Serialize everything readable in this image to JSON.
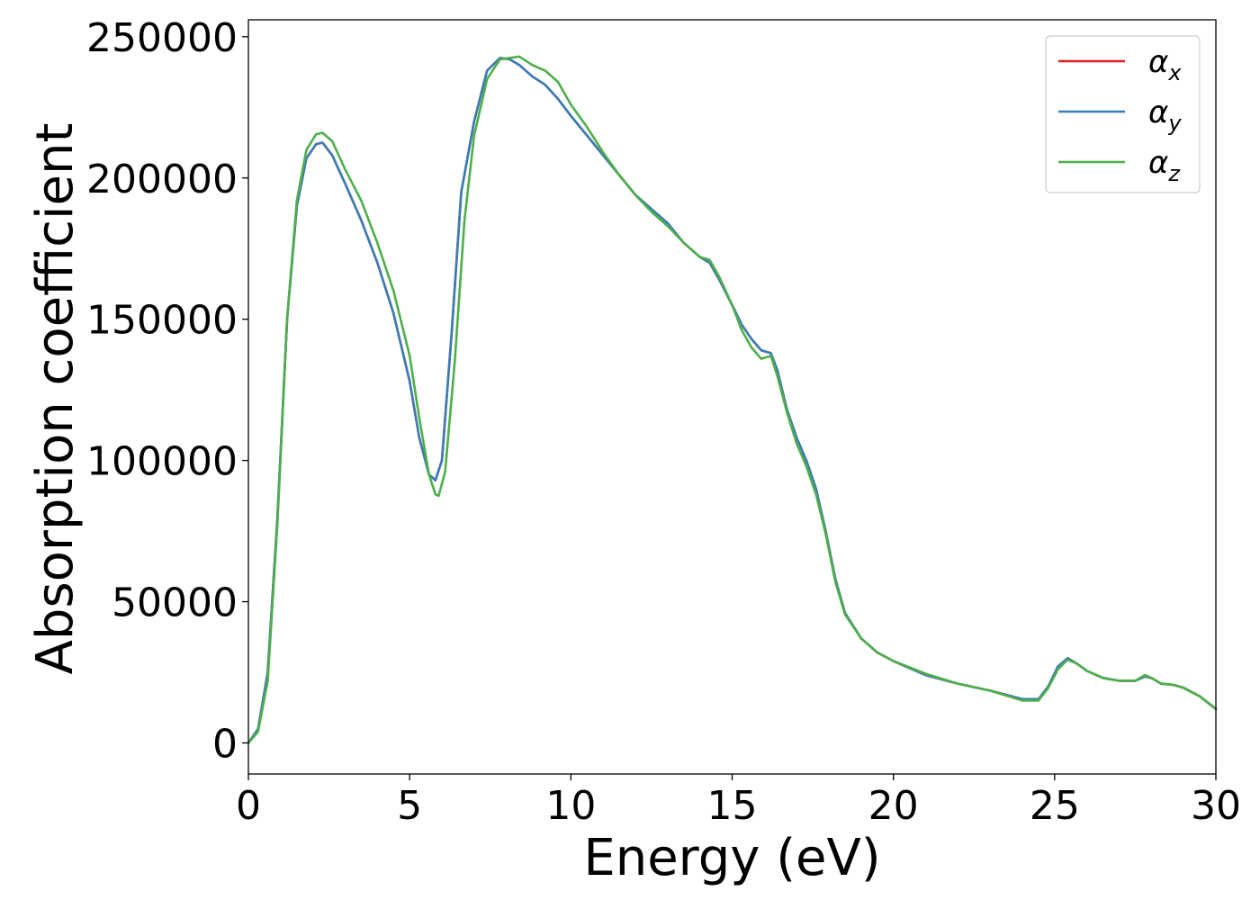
{
  "chart_data": {
    "type": "line",
    "title": "",
    "xlabel": "Energy (eV)",
    "ylabel": "Absorption coefficient",
    "xlim": [
      0,
      30
    ],
    "ylim": [
      -11000,
      256000
    ],
    "xticks": [
      0,
      5,
      10,
      15,
      20,
      25,
      30
    ],
    "yticks": [
      0,
      50000,
      100000,
      150000,
      200000,
      250000
    ],
    "xtick_labels": [
      "0",
      "5",
      "10",
      "15",
      "20",
      "25",
      "30"
    ],
    "ytick_labels": [
      "0",
      "50000",
      "100000",
      "150000",
      "200000",
      "250000"
    ],
    "grid": false,
    "legend_position": "top-right",
    "series": [
      {
        "name": "αx",
        "legend_main": "α",
        "legend_sub": "x",
        "color": "#e41a1c",
        "x": [
          0,
          0.3,
          0.6,
          0.9,
          1.2,
          1.5,
          1.8,
          2.1,
          2.3,
          2.6,
          3.0,
          3.5,
          4.0,
          4.5,
          5.0,
          5.3,
          5.6,
          5.8,
          6.0,
          6.3,
          6.6,
          7.0,
          7.4,
          7.8,
          8.1,
          8.4,
          8.8,
          9.2,
          9.6,
          10.0,
          10.5,
          11.0,
          11.5,
          12.0,
          12.5,
          13.0,
          13.5,
          14.0,
          14.3,
          14.6,
          15.0,
          15.3,
          15.6,
          15.9,
          16.2,
          16.4,
          16.7,
          17.0,
          17.3,
          17.6,
          17.9,
          18.2,
          18.5,
          19.0,
          19.5,
          20.0,
          21.0,
          22.0,
          23.0,
          24.0,
          24.5,
          24.8,
          25.1,
          25.4,
          25.7,
          26.0,
          26.5,
          27.0,
          27.5,
          27.8,
          28.0,
          28.3,
          28.7,
          29.0,
          29.5,
          30.0
        ],
        "y": [
          0,
          5000,
          25000,
          80000,
          150000,
          190000,
          207000,
          212000,
          212500,
          208000,
          198000,
          185000,
          170000,
          152000,
          128000,
          108000,
          95000,
          93000,
          100000,
          145000,
          195000,
          220000,
          238000,
          242500,
          242000,
          240000,
          236000,
          233000,
          228000,
          222000,
          215000,
          208000,
          201000,
          194000,
          189000,
          184000,
          177000,
          172000,
          170000,
          164000,
          155000,
          148000,
          143000,
          139000,
          138000,
          132000,
          118000,
          108000,
          100000,
          90000,
          75000,
          58000,
          46000,
          37000,
          32000,
          29000,
          24000,
          21000,
          18500,
          15500,
          15500,
          20000,
          27000,
          30000,
          28000,
          25500,
          23000,
          22000,
          22000,
          23500,
          23000,
          21000,
          20500,
          19500,
          16500,
          12000
        ]
      },
      {
        "name": "αy",
        "legend_main": "α",
        "legend_sub": "y",
        "color": "#377eb8",
        "x": [
          0,
          0.3,
          0.6,
          0.9,
          1.2,
          1.5,
          1.8,
          2.1,
          2.3,
          2.6,
          3.0,
          3.5,
          4.0,
          4.5,
          5.0,
          5.3,
          5.6,
          5.8,
          6.0,
          6.3,
          6.6,
          7.0,
          7.4,
          7.8,
          8.1,
          8.4,
          8.8,
          9.2,
          9.6,
          10.0,
          10.5,
          11.0,
          11.5,
          12.0,
          12.5,
          13.0,
          13.5,
          14.0,
          14.3,
          14.6,
          15.0,
          15.3,
          15.6,
          15.9,
          16.2,
          16.4,
          16.7,
          17.0,
          17.3,
          17.6,
          17.9,
          18.2,
          18.5,
          19.0,
          19.5,
          20.0,
          21.0,
          22.0,
          23.0,
          24.0,
          24.5,
          24.8,
          25.1,
          25.4,
          25.7,
          26.0,
          26.5,
          27.0,
          27.5,
          27.8,
          28.0,
          28.3,
          28.7,
          29.0,
          29.5,
          30.0
        ],
        "y": [
          0,
          5000,
          25000,
          80000,
          150000,
          190000,
          207000,
          212000,
          212500,
          208000,
          198000,
          185000,
          170000,
          152000,
          128000,
          108000,
          95000,
          93000,
          100000,
          145000,
          195000,
          220000,
          238000,
          242500,
          242000,
          240000,
          236000,
          233000,
          228000,
          222000,
          215000,
          208000,
          201000,
          194000,
          189000,
          184000,
          177000,
          172000,
          170000,
          164000,
          155000,
          148000,
          143000,
          139000,
          138000,
          132000,
          118000,
          108000,
          100000,
          90000,
          75000,
          58000,
          46000,
          37000,
          32000,
          29000,
          24000,
          21000,
          18500,
          15500,
          15500,
          20000,
          27000,
          30000,
          28000,
          25500,
          23000,
          22000,
          22000,
          23500,
          23000,
          21000,
          20500,
          19500,
          16500,
          12000
        ]
      },
      {
        "name": "αz",
        "legend_main": "α",
        "legend_sub": "z",
        "color": "#4daf4a",
        "x": [
          0,
          0.3,
          0.6,
          0.9,
          1.2,
          1.5,
          1.8,
          2.1,
          2.3,
          2.6,
          3.0,
          3.5,
          4.0,
          4.5,
          5.0,
          5.3,
          5.6,
          5.8,
          5.9,
          6.1,
          6.4,
          6.7,
          7.0,
          7.4,
          7.8,
          8.1,
          8.4,
          8.8,
          9.2,
          9.6,
          10.0,
          10.5,
          11.0,
          11.5,
          12.0,
          12.5,
          13.0,
          13.5,
          14.0,
          14.3,
          14.6,
          15.0,
          15.3,
          15.6,
          15.9,
          16.2,
          16.4,
          16.7,
          17.0,
          17.3,
          17.6,
          17.9,
          18.2,
          18.5,
          19.0,
          19.5,
          20.0,
          21.0,
          22.0,
          23.0,
          24.0,
          24.5,
          24.8,
          25.1,
          25.4,
          25.7,
          26.0,
          26.5,
          27.0,
          27.5,
          27.8,
          28.0,
          28.3,
          28.7,
          29.0,
          29.5,
          30.0
        ],
        "y": [
          0,
          4000,
          22000,
          78000,
          150000,
          192000,
          210000,
          215500,
          216000,
          213000,
          203000,
          192000,
          177000,
          160000,
          137000,
          115000,
          95000,
          88000,
          87500,
          96000,
          135000,
          185000,
          215000,
          235000,
          242000,
          242500,
          243000,
          240000,
          238000,
          234000,
          226000,
          218000,
          209000,
          201000,
          194000,
          188000,
          183000,
          177000,
          172000,
          171000,
          165000,
          155000,
          146000,
          140000,
          136000,
          137000,
          130000,
          117000,
          106000,
          98000,
          88000,
          74000,
          57000,
          45500,
          37000,
          32000,
          29000,
          24500,
          21000,
          18500,
          15000,
          15000,
          19500,
          26000,
          29500,
          28000,
          25500,
          23000,
          22000,
          22000,
          24000,
          23000,
          21000,
          20500,
          19500,
          16500,
          12000
        ]
      }
    ]
  }
}
